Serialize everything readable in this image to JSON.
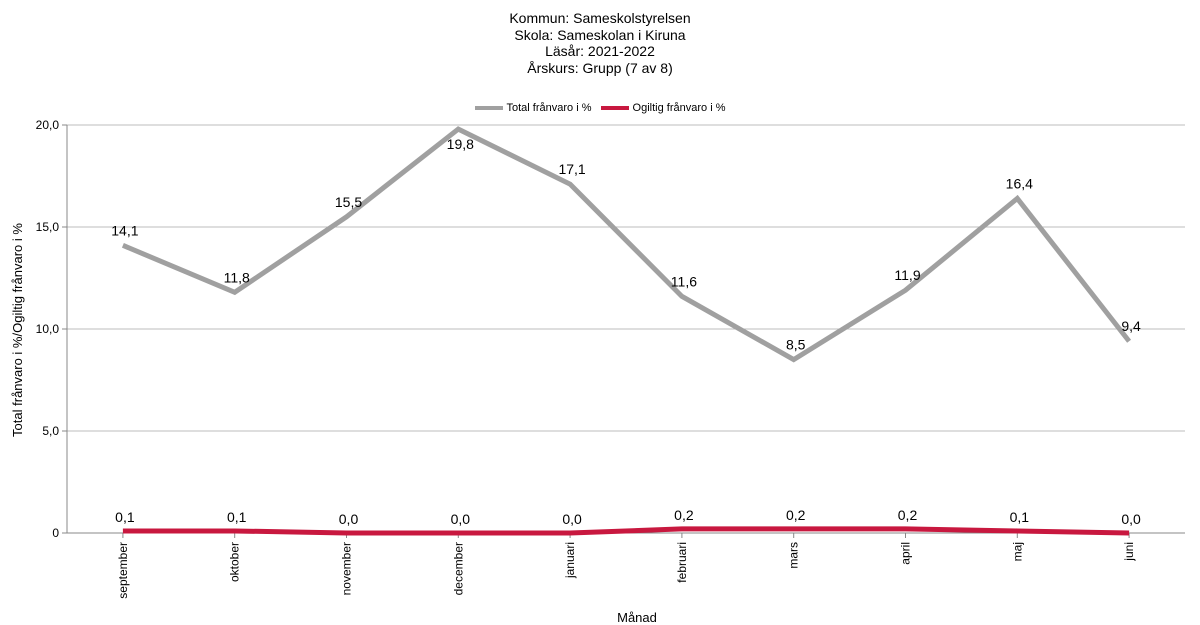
{
  "chart_data": {
    "type": "line",
    "title_lines": [
      "Kommun: Sameskolstyrelsen",
      "Skola: Sameskolan i Kiruna",
      "Läsår: 2021-2022",
      "Årskurs: Grupp (7 av 8)"
    ],
    "xlabel": "Månad",
    "ylabel": "Total frånvaro i %/Ogiltig frånvaro i %",
    "categories": [
      "september",
      "oktober",
      "november",
      "december",
      "januari",
      "februari",
      "mars",
      "april",
      "maj",
      "juni"
    ],
    "ylim": [
      0,
      20
    ],
    "yticks": [
      0,
      5,
      10,
      15,
      20
    ],
    "ytick_labels": [
      "0",
      "5,0",
      "10,0",
      "15,0",
      "20,0"
    ],
    "grid": "horizontal",
    "legend_position": "top-center",
    "series": [
      {
        "name": "Total frånvaro i %",
        "color": "#a0a0a0",
        "values": [
          14.1,
          11.8,
          15.5,
          19.8,
          17.1,
          11.6,
          8.5,
          11.9,
          16.4,
          9.4
        ],
        "labels": [
          "14,1",
          "11,8",
          "15,5",
          "19,8",
          "17,1",
          "11,6",
          "8,5",
          "11,9",
          "16,4",
          "9,4"
        ]
      },
      {
        "name": "Ogiltig frånvaro i %",
        "color": "#c8183f",
        "values": [
          0.1,
          0.1,
          0.0,
          0.0,
          0.0,
          0.2,
          0.2,
          0.2,
          0.1,
          0.0
        ],
        "labels": [
          "0,1",
          "0,1",
          "0,0",
          "0,0",
          "0,0",
          "0,2",
          "0,2",
          "0,2",
          "0,1",
          "0,0"
        ]
      }
    ]
  }
}
